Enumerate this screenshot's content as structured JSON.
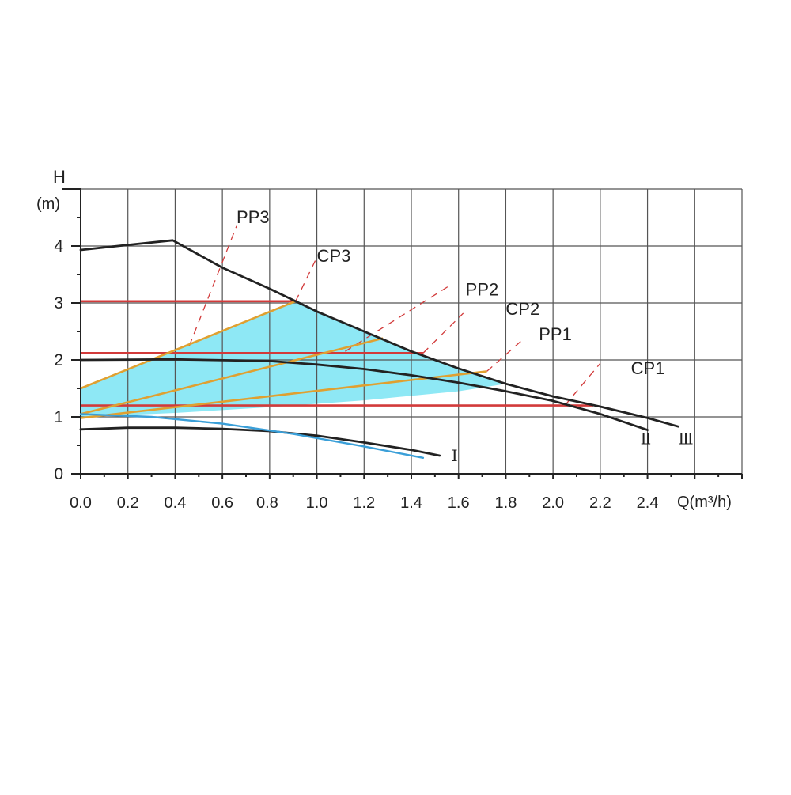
{
  "chart_data": {
    "type": "line",
    "y_title": "H",
    "y_unit": "(m)",
    "x_title": "Q(m³/h)",
    "xlim": [
      0,
      2.8
    ],
    "ylim": [
      0,
      5
    ],
    "x_ticks": [
      "0.0",
      "0.2",
      "0.4",
      "0.6",
      "0.8",
      "1.0",
      "1.2",
      "1.4",
      "1.6",
      "1.8",
      "2.0",
      "2.2",
      "2.4"
    ],
    "y_ticks": [
      "0",
      "1",
      "2",
      "3",
      "4"
    ],
    "grid": true,
    "colors": {
      "curve": "#222222",
      "constant_pressure": "#d23a3a",
      "proportional_pressure": "#e0a030",
      "shaded_area": "#8ee8f5",
      "curve_blue": "#3a9fd8",
      "dashed": "#d23a3a"
    },
    "series": [
      {
        "name": "Ⅰ",
        "kind": "speed-curve",
        "x": [
          0.0,
          0.2,
          0.4,
          0.6,
          0.8,
          1.0,
          1.2,
          1.4,
          1.52
        ],
        "y": [
          0.78,
          0.81,
          0.81,
          0.79,
          0.75,
          0.67,
          0.55,
          0.42,
          0.32
        ]
      },
      {
        "name": "Ⅱ",
        "kind": "speed-curve",
        "x": [
          0.0,
          0.4,
          0.8,
          1.0,
          1.2,
          1.4,
          1.6,
          1.8,
          2.0,
          2.2,
          2.4
        ],
        "y": [
          2.0,
          2.01,
          1.98,
          1.92,
          1.84,
          1.73,
          1.6,
          1.45,
          1.28,
          1.05,
          0.77
        ]
      },
      {
        "name": "Ⅲ",
        "kind": "speed-curve",
        "x": [
          0.0,
          0.2,
          0.39,
          0.6,
          0.8,
          1.0,
          1.2,
          1.4,
          1.6,
          1.8,
          2.0,
          2.2,
          2.4,
          2.53
        ],
        "y": [
          3.93,
          4.02,
          4.1,
          3.62,
          3.25,
          2.85,
          2.5,
          2.15,
          1.85,
          1.58,
          1.36,
          1.18,
          0.98,
          0.83
        ]
      },
      {
        "name": "",
        "kind": "blue-curve",
        "x": [
          0.0,
          0.3,
          0.6,
          0.9,
          1.2,
          1.45
        ],
        "y": [
          1.05,
          1.0,
          0.88,
          0.7,
          0.48,
          0.28
        ]
      }
    ],
    "constant_pressure_lines": [
      {
        "name": "CP3",
        "y": 3.03,
        "x_end": 0.91
      },
      {
        "name": "CP2",
        "y": 2.12,
        "x_end": 1.45
      },
      {
        "name": "CP1",
        "y": 1.2,
        "x_end": 2.17
      }
    ],
    "proportional_pressure_lines": [
      {
        "name": "PP3",
        "x": [
          0.0,
          0.91
        ],
        "y": [
          1.5,
          3.03
        ]
      },
      {
        "name": "PP2",
        "x": [
          0.0,
          1.28
        ],
        "y": [
          1.05,
          2.38
        ]
      },
      {
        "name": "PP1",
        "x": [
          0.0,
          1.72
        ],
        "y": [
          0.98,
          1.8
        ]
      }
    ],
    "shaded_region": {
      "x": [
        0.0,
        0.2,
        0.4,
        0.6,
        0.8,
        0.91,
        1.0,
        1.2,
        1.4,
        1.6,
        1.8,
        1.6,
        1.2,
        0.8,
        0.4,
        0.0
      ],
      "y": [
        1.5,
        1.84,
        2.17,
        2.5,
        2.84,
        3.03,
        2.85,
        2.5,
        2.15,
        1.85,
        1.58,
        1.45,
        1.29,
        1.17,
        1.07,
        1.0
      ]
    },
    "dashed_guides": [
      {
        "label": "PP3",
        "x": [
          0.46,
          0.66
        ],
        "y": [
          2.25,
          4.35
        ]
      },
      {
        "label": "CP3",
        "x": [
          0.91,
          1.0
        ],
        "y": [
          3.03,
          3.8
        ]
      },
      {
        "label": "PP2",
        "x": [
          1.12,
          1.56
        ],
        "y": [
          2.15,
          3.3
        ]
      },
      {
        "label": "CP2",
        "x": [
          1.45,
          1.62
        ],
        "y": [
          2.12,
          2.82
        ]
      },
      {
        "label": "PP1",
        "x": [
          1.72,
          1.87
        ],
        "y": [
          1.8,
          2.35
        ]
      },
      {
        "label": "CP1",
        "x": [
          2.05,
          2.2
        ],
        "y": [
          1.2,
          1.94
        ]
      }
    ],
    "annotations": [
      {
        "text": "PP3",
        "x": 0.66,
        "y": 4.4
      },
      {
        "text": "CP3",
        "x": 1.0,
        "y": 3.72
      },
      {
        "text": "PP2",
        "x": 1.63,
        "y": 3.13
      },
      {
        "text": "CP2",
        "x": 1.8,
        "y": 2.79
      },
      {
        "text": "PP1",
        "x": 1.94,
        "y": 2.35
      },
      {
        "text": "CP1",
        "x": 2.33,
        "y": 1.75
      },
      {
        "text": "Ⅰ",
        "x": 1.57,
        "y": 0.22
      },
      {
        "text": "Ⅱ",
        "x": 2.37,
        "y": 0.52
      },
      {
        "text": "Ⅲ",
        "x": 2.53,
        "y": 0.52
      }
    ]
  }
}
